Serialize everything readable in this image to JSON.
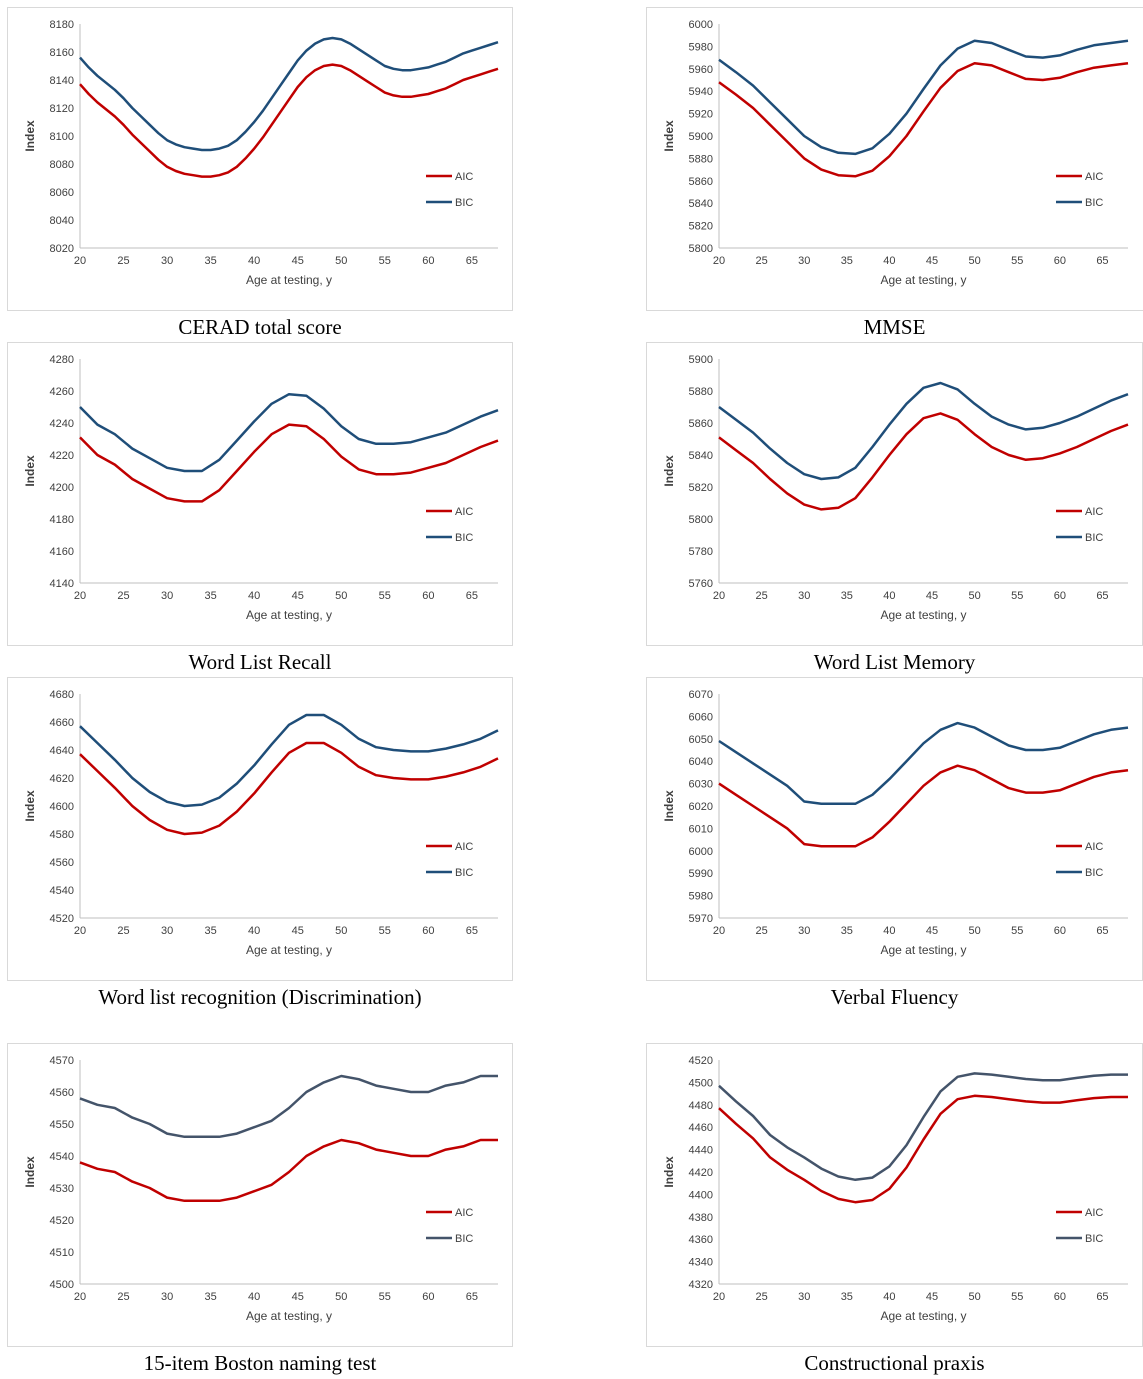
{
  "colors": {
    "aic": "#c00000",
    "bic": "#1f4e79",
    "bic_alt": "#44546a",
    "axis": "#bfbfbf"
  },
  "chart_data": [
    {
      "type": "line",
      "caption": "CERAD total score",
      "xlabel": "Age at testing, y",
      "ylabel": "Index",
      "xlim": [
        20,
        68
      ],
      "xticks": [
        20,
        25,
        30,
        35,
        40,
        45,
        50,
        55,
        60,
        65
      ],
      "ylim": [
        8020,
        8180
      ],
      "yticks": [
        8020,
        8040,
        8060,
        8080,
        8100,
        8120,
        8140,
        8160,
        8180
      ],
      "x": [
        20,
        21,
        22,
        23,
        24,
        25,
        26,
        27,
        28,
        29,
        30,
        31,
        32,
        33,
        34,
        35,
        36,
        37,
        38,
        39,
        40,
        41,
        42,
        43,
        44,
        45,
        46,
        47,
        48,
        49,
        50,
        51,
        52,
        53,
        54,
        55,
        56,
        57,
        58,
        59,
        60,
        61,
        62,
        63,
        64,
        65,
        66,
        67,
        68
      ],
      "series": [
        {
          "name": "AIC",
          "values": [
            8137,
            8130,
            8124,
            8119,
            8114,
            8108,
            8101,
            8095,
            8089,
            8083,
            8078,
            8075,
            8073,
            8072,
            8071,
            8071,
            8072,
            8074,
            8078,
            8084,
            8091,
            8099,
            8108,
            8117,
            8126,
            8135,
            8142,
            8147,
            8150,
            8151,
            8150,
            8147,
            8143,
            8139,
            8135,
            8131,
            8129,
            8128,
            8128,
            8129,
            8130,
            8132,
            8134,
            8137,
            8140,
            8142,
            8144,
            8146,
            8148
          ]
        },
        {
          "name": "BIC",
          "values": [
            8156,
            8149,
            8143,
            8138,
            8133,
            8127,
            8120,
            8114,
            8108,
            8102,
            8097,
            8094,
            8092,
            8091,
            8090,
            8090,
            8091,
            8093,
            8097,
            8103,
            8110,
            8118,
            8127,
            8136,
            8145,
            8154,
            8161,
            8166,
            8169,
            8170,
            8169,
            8166,
            8162,
            8158,
            8154,
            8150,
            8148,
            8147,
            8147,
            8148,
            8149,
            8151,
            8153,
            8156,
            8159,
            8161,
            8163,
            8165,
            8167
          ]
        }
      ],
      "legend": "right"
    },
    {
      "type": "line",
      "caption": "MMSE",
      "xlabel": "Age at testing, y",
      "ylabel": "Index",
      "xlim": [
        20,
        68
      ],
      "xticks": [
        20,
        25,
        30,
        35,
        40,
        45,
        50,
        55,
        60,
        65
      ],
      "ylim": [
        5800,
        6000
      ],
      "yticks": [
        5800,
        5820,
        5840,
        5860,
        5880,
        5900,
        5920,
        5940,
        5960,
        5980,
        6000
      ],
      "x": [
        20,
        22,
        24,
        26,
        28,
        30,
        32,
        34,
        36,
        38,
        40,
        42,
        44,
        46,
        48,
        50,
        52,
        54,
        56,
        58,
        60,
        62,
        64,
        66,
        68
      ],
      "series": [
        {
          "name": "AIC",
          "values": [
            5948,
            5937,
            5925,
            5910,
            5895,
            5880,
            5870,
            5865,
            5864,
            5869,
            5882,
            5900,
            5922,
            5943,
            5958,
            5965,
            5963,
            5957,
            5951,
            5950,
            5952,
            5957,
            5961,
            5963,
            5965
          ]
        },
        {
          "name": "BIC",
          "values": [
            5968,
            5957,
            5945,
            5930,
            5915,
            5900,
            5890,
            5885,
            5884,
            5889,
            5902,
            5920,
            5942,
            5963,
            5978,
            5985,
            5983,
            5977,
            5971,
            5970,
            5972,
            5977,
            5981,
            5983,
            5985
          ]
        }
      ],
      "legend": "right"
    },
    {
      "type": "line",
      "caption": "Word List Recall",
      "xlabel": "Age at testing, y",
      "ylabel": "Index",
      "xlim": [
        20,
        68
      ],
      "xticks": [
        20,
        25,
        30,
        35,
        40,
        45,
        50,
        55,
        60,
        65
      ],
      "ylim": [
        4140,
        4280
      ],
      "yticks": [
        4140,
        4160,
        4180,
        4200,
        4220,
        4240,
        4260,
        4280
      ],
      "x": [
        20,
        22,
        24,
        26,
        28,
        30,
        32,
        34,
        36,
        38,
        40,
        42,
        44,
        46,
        48,
        50,
        52,
        54,
        56,
        58,
        60,
        62,
        64,
        66,
        68
      ],
      "series": [
        {
          "name": "AIC",
          "values": [
            4231,
            4220,
            4214,
            4205,
            4199,
            4193,
            4191,
            4191,
            4198,
            4210,
            4222,
            4233,
            4239,
            4238,
            4230,
            4219,
            4211,
            4208,
            4208,
            4209,
            4212,
            4215,
            4220,
            4225,
            4229
          ]
        },
        {
          "name": "BIC",
          "values": [
            4250,
            4239,
            4233,
            4224,
            4218,
            4212,
            4210,
            4210,
            4217,
            4229,
            4241,
            4252,
            4258,
            4257,
            4249,
            4238,
            4230,
            4227,
            4227,
            4228,
            4231,
            4234,
            4239,
            4244,
            4248
          ]
        }
      ],
      "legend": "right"
    },
    {
      "type": "line",
      "caption": "Word List Memory",
      "xlabel": "Age at testing, y",
      "ylabel": "Index",
      "xlim": [
        20,
        68
      ],
      "xticks": [
        20,
        25,
        30,
        35,
        40,
        45,
        50,
        55,
        60,
        65
      ],
      "ylim": [
        5760,
        5900
      ],
      "yticks": [
        5760,
        5780,
        5800,
        5820,
        5840,
        5860,
        5880,
        5900
      ],
      "x": [
        20,
        22,
        24,
        26,
        28,
        30,
        32,
        34,
        36,
        38,
        40,
        42,
        44,
        46,
        48,
        50,
        52,
        54,
        56,
        58,
        60,
        62,
        64,
        66,
        68
      ],
      "series": [
        {
          "name": "AIC",
          "values": [
            5851,
            5843,
            5835,
            5825,
            5816,
            5809,
            5806,
            5807,
            5813,
            5826,
            5840,
            5853,
            5863,
            5866,
            5862,
            5853,
            5845,
            5840,
            5837,
            5838,
            5841,
            5845,
            5850,
            5855,
            5859
          ]
        },
        {
          "name": "BIC",
          "values": [
            5870,
            5862,
            5854,
            5844,
            5835,
            5828,
            5825,
            5826,
            5832,
            5845,
            5859,
            5872,
            5882,
            5885,
            5881,
            5872,
            5864,
            5859,
            5856,
            5857,
            5860,
            5864,
            5869,
            5874,
            5878
          ]
        }
      ],
      "legend": "right"
    },
    {
      "type": "line",
      "caption": "Word list recognition (Discrimination)",
      "xlabel": "Age at testing, y",
      "ylabel": "Index",
      "xlim": [
        20,
        68
      ],
      "xticks": [
        20,
        25,
        30,
        35,
        40,
        45,
        50,
        55,
        60,
        65
      ],
      "ylim": [
        4520,
        4680
      ],
      "yticks": [
        4520,
        4540,
        4560,
        4580,
        4600,
        4620,
        4640,
        4660,
        4680
      ],
      "x": [
        20,
        22,
        24,
        26,
        28,
        30,
        32,
        34,
        36,
        38,
        40,
        42,
        44,
        46,
        48,
        50,
        52,
        54,
        56,
        58,
        60,
        62,
        64,
        66,
        68
      ],
      "series": [
        {
          "name": "AIC",
          "values": [
            4637,
            4625,
            4613,
            4600,
            4590,
            4583,
            4580,
            4581,
            4586,
            4596,
            4609,
            4624,
            4638,
            4645,
            4645,
            4638,
            4628,
            4622,
            4620,
            4619,
            4619,
            4621,
            4624,
            4628,
            4634
          ]
        },
        {
          "name": "BIC",
          "values": [
            4657,
            4645,
            4633,
            4620,
            4610,
            4603,
            4600,
            4601,
            4606,
            4616,
            4629,
            4644,
            4658,
            4665,
            4665,
            4658,
            4648,
            4642,
            4640,
            4639,
            4639,
            4641,
            4644,
            4648,
            4654
          ]
        }
      ],
      "legend": "right"
    },
    {
      "type": "line",
      "caption": "Verbal Fluency",
      "xlabel": "Age at testing, y",
      "ylabel": "Index",
      "xlim": [
        20,
        68
      ],
      "xticks": [
        20,
        25,
        30,
        35,
        40,
        45,
        50,
        55,
        60,
        65
      ],
      "ylim": [
        5970,
        6070
      ],
      "yticks": [
        5970,
        5980,
        5990,
        6000,
        6010,
        6020,
        6030,
        6040,
        6050,
        6060,
        6070
      ],
      "x": [
        20,
        22,
        24,
        26,
        28,
        30,
        32,
        34,
        36,
        38,
        40,
        42,
        44,
        46,
        48,
        50,
        52,
        54,
        56,
        58,
        60,
        62,
        64,
        66,
        68
      ],
      "series": [
        {
          "name": "AIC",
          "values": [
            6030,
            6025,
            6020,
            6015,
            6010,
            6003,
            6002,
            6002,
            6002,
            6006,
            6013,
            6021,
            6029,
            6035,
            6038,
            6036,
            6032,
            6028,
            6026,
            6026,
            6027,
            6030,
            6033,
            6035,
            6036
          ]
        },
        {
          "name": "BIC",
          "values": [
            6049,
            6044,
            6039,
            6034,
            6029,
            6022,
            6021,
            6021,
            6021,
            6025,
            6032,
            6040,
            6048,
            6054,
            6057,
            6055,
            6051,
            6047,
            6045,
            6045,
            6046,
            6049,
            6052,
            6054,
            6055
          ]
        }
      ],
      "legend": "right"
    },
    {
      "type": "line",
      "caption": "15-item Boston naming test",
      "xlabel": "Age at testing, y",
      "ylabel": "Index",
      "xlim": [
        20,
        68
      ],
      "xticks": [
        20,
        25,
        30,
        35,
        40,
        45,
        50,
        55,
        60,
        65
      ],
      "ylim": [
        4500,
        4570
      ],
      "yticks": [
        4500,
        4510,
        4520,
        4530,
        4540,
        4550,
        4560,
        4570
      ],
      "x": [
        20,
        22,
        24,
        26,
        28,
        30,
        32,
        34,
        36,
        38,
        40,
        42,
        44,
        46,
        48,
        50,
        52,
        54,
        56,
        58,
        60,
        62,
        64,
        66,
        68
      ],
      "series": [
        {
          "name": "AIC",
          "values": [
            4538,
            4536,
            4535,
            4532,
            4530,
            4527,
            4526,
            4526,
            4526,
            4527,
            4529,
            4531,
            4535,
            4540,
            4543,
            4545,
            4544,
            4542,
            4541,
            4540,
            4540,
            4542,
            4543,
            4545,
            4545
          ]
        },
        {
          "name": "BIC",
          "values": [
            4558,
            4556,
            4555,
            4552,
            4550,
            4547,
            4546,
            4546,
            4546,
            4547,
            4549,
            4551,
            4555,
            4560,
            4563,
            4565,
            4564,
            4562,
            4561,
            4560,
            4560,
            4562,
            4563,
            4565,
            4565
          ]
        }
      ],
      "legend": "right"
    },
    {
      "type": "line",
      "caption": "Constructional praxis",
      "xlabel": "Age at testing, y",
      "ylabel": "Index",
      "xlim": [
        20,
        68
      ],
      "xticks": [
        20,
        25,
        30,
        35,
        40,
        45,
        50,
        55,
        60,
        65
      ],
      "ylim": [
        4320,
        4520
      ],
      "yticks": [
        4320,
        4340,
        4360,
        4380,
        4400,
        4420,
        4440,
        4460,
        4480,
        4500,
        4520
      ],
      "x": [
        20,
        22,
        24,
        26,
        28,
        30,
        32,
        34,
        36,
        38,
        40,
        42,
        44,
        46,
        48,
        50,
        52,
        54,
        56,
        58,
        60,
        62,
        64,
        66,
        68
      ],
      "series": [
        {
          "name": "AIC",
          "values": [
            4477,
            4463,
            4450,
            4433,
            4422,
            4413,
            4403,
            4396,
            4393,
            4395,
            4405,
            4424,
            4449,
            4472,
            4485,
            4488,
            4487,
            4485,
            4483,
            4482,
            4482,
            4484,
            4486,
            4487,
            4487
          ]
        },
        {
          "name": "BIC",
          "values": [
            4497,
            4483,
            4470,
            4453,
            4442,
            4433,
            4423,
            4416,
            4413,
            4415,
            4425,
            4444,
            4469,
            4492,
            4505,
            4508,
            4507,
            4505,
            4503,
            4502,
            4502,
            4504,
            4506,
            4507,
            4507
          ]
        }
      ],
      "legend": "right"
    }
  ]
}
